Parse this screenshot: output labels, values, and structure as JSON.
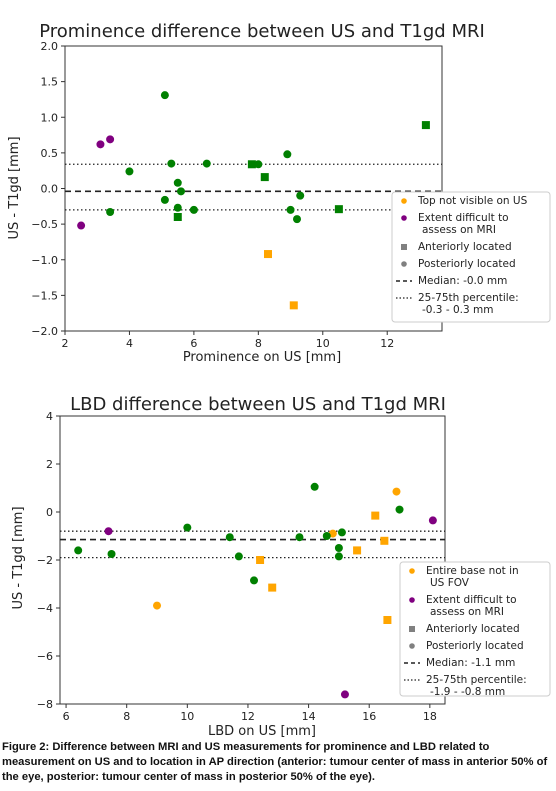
{
  "colors": {
    "orange": "#FFA500",
    "purple": "#800080",
    "green": "#008000",
    "gray": "#808080",
    "axis": "#333333"
  },
  "chart_data": [
    {
      "type": "scatter",
      "title": "Prominence difference between US and T1gd MRI",
      "xlabel": "Prominence on US [mm]",
      "ylabel": "US - T1gd [mm]",
      "xlim": [
        2,
        13.7
      ],
      "ylim": [
        -2.0,
        2.0
      ],
      "xticks": [
        "2",
        "4",
        "6",
        "8",
        "10",
        "12"
      ],
      "yticks": [
        "−2.0",
        "−1.5",
        "−1.0",
        "−0.5",
        "0.0",
        "0.5",
        "1.0",
        "1.5",
        "2.0"
      ],
      "grid": false,
      "legend_position": "right",
      "legend": [
        {
          "label": "Top not visible on US",
          "marker": "circle",
          "color": "#FFA500"
        },
        {
          "label": "Extent difficult to",
          "label2": "assess on MRI",
          "marker": "circle",
          "color": "#800080"
        },
        {
          "label": "Anteriorly located",
          "marker": "square",
          "color": "#808080"
        },
        {
          "label": "Posteriorly located",
          "marker": "circle",
          "color": "#808080"
        },
        {
          "label": "Median: -0.0 mm",
          "marker": "dashed"
        },
        {
          "label": "25-75th percentile:",
          "label2": "-0.3 - 0.3 mm",
          "marker": "dotted"
        }
      ],
      "median": -0.04,
      "percentile_25": -0.3,
      "percentile_75": 0.34,
      "series": [
        {
          "name": "Top not visible on US",
          "color": "#FFA500",
          "points": [
            {
              "x": 8.3,
              "y": -0.92,
              "m": "square"
            },
            {
              "x": 9.1,
              "y": -1.64,
              "m": "square"
            }
          ]
        },
        {
          "name": "Extent difficult to assess on MRI",
          "color": "#800080",
          "points": [
            {
              "x": 2.5,
              "y": -0.52,
              "m": "circle"
            },
            {
              "x": 3.1,
              "y": 0.62,
              "m": "circle"
            },
            {
              "x": 3.4,
              "y": 0.69,
              "m": "circle"
            }
          ]
        },
        {
          "name": "Green",
          "color": "#008000",
          "points": [
            {
              "x": 3.4,
              "y": -0.33,
              "m": "circle"
            },
            {
              "x": 4.0,
              "y": 0.24,
              "m": "circle"
            },
            {
              "x": 5.1,
              "y": 1.31,
              "m": "circle"
            },
            {
              "x": 5.1,
              "y": -0.16,
              "m": "circle"
            },
            {
              "x": 5.3,
              "y": 0.35,
              "m": "circle"
            },
            {
              "x": 5.5,
              "y": 0.08,
              "m": "circle"
            },
            {
              "x": 5.6,
              "y": -0.04,
              "m": "circle"
            },
            {
              "x": 5.5,
              "y": -0.27,
              "m": "circle"
            },
            {
              "x": 5.5,
              "y": -0.4,
              "m": "square"
            },
            {
              "x": 6.0,
              "y": -0.3,
              "m": "circle"
            },
            {
              "x": 6.4,
              "y": 0.35,
              "m": "circle"
            },
            {
              "x": 7.8,
              "y": 0.34,
              "m": "square"
            },
            {
              "x": 8.0,
              "y": 0.34,
              "m": "circle"
            },
            {
              "x": 8.2,
              "y": 0.16,
              "m": "square"
            },
            {
              "x": 8.9,
              "y": 0.48,
              "m": "circle"
            },
            {
              "x": 9.0,
              "y": -0.3,
              "m": "circle"
            },
            {
              "x": 9.2,
              "y": -0.43,
              "m": "circle"
            },
            {
              "x": 9.3,
              "y": -0.1,
              "m": "circle"
            },
            {
              "x": 10.5,
              "y": -0.29,
              "m": "square"
            },
            {
              "x": 13.2,
              "y": 0.89,
              "m": "square"
            }
          ]
        }
      ]
    },
    {
      "type": "scatter",
      "title": "LBD difference between US and T1gd MRI",
      "xlabel": "LBD on US [mm]",
      "ylabel": "US - T1gd [mm]",
      "xlim": [
        5.8,
        18.5
      ],
      "ylim": [
        -8,
        4
      ],
      "xticks": [
        "6",
        "8",
        "10",
        "12",
        "14",
        "16",
        "18"
      ],
      "yticks": [
        "−8",
        "−6",
        "−4",
        "−2",
        "0",
        "2",
        "4"
      ],
      "grid": false,
      "legend_position": "bottom-right",
      "legend": [
        {
          "label": "Entire base not in",
          "label2": "US FOV",
          "marker": "circle",
          "color": "#FFA500"
        },
        {
          "label": "Extent difficult to",
          "label2": "assess on MRI",
          "marker": "circle",
          "color": "#800080"
        },
        {
          "label": "Anteriorly located",
          "marker": "square",
          "color": "#808080"
        },
        {
          "label": "Posteriorly located",
          "marker": "circle",
          "color": "#808080"
        },
        {
          "label": "Median: -1.1 mm",
          "marker": "dashed"
        },
        {
          "label": "25-75th percentile:",
          "label2": "-1.9 - -0.8 mm",
          "marker": "dotted"
        }
      ],
      "median": -1.15,
      "percentile_25": -1.9,
      "percentile_75": -0.8,
      "series": [
        {
          "name": "Entire base not in US FOV",
          "color": "#FFA500",
          "points": [
            {
              "x": 9.0,
              "y": -3.9,
              "m": "circle"
            },
            {
              "x": 12.4,
              "y": -2.0,
              "m": "square"
            },
            {
              "x": 12.8,
              "y": -3.15,
              "m": "square"
            },
            {
              "x": 14.8,
              "y": -0.9,
              "m": "circle"
            },
            {
              "x": 15.6,
              "y": -1.6,
              "m": "square"
            },
            {
              "x": 16.2,
              "y": -0.15,
              "m": "square"
            },
            {
              "x": 16.5,
              "y": -1.2,
              "m": "square"
            },
            {
              "x": 16.6,
              "y": -4.5,
              "m": "square"
            },
            {
              "x": 16.9,
              "y": 0.85,
              "m": "circle"
            }
          ]
        },
        {
          "name": "Extent difficult to assess on MRI",
          "color": "#800080",
          "points": [
            {
              "x": 7.4,
              "y": -0.8,
              "m": "circle"
            },
            {
              "x": 15.2,
              "y": -7.6,
              "m": "circle"
            },
            {
              "x": 18.1,
              "y": -0.35,
              "m": "circle"
            }
          ]
        },
        {
          "name": "Green",
          "color": "#008000",
          "points": [
            {
              "x": 6.4,
              "y": -1.6,
              "m": "circle"
            },
            {
              "x": 7.5,
              "y": -1.75,
              "m": "circle"
            },
            {
              "x": 10.0,
              "y": -0.65,
              "m": "circle"
            },
            {
              "x": 11.4,
              "y": -1.05,
              "m": "circle"
            },
            {
              "x": 11.7,
              "y": -1.85,
              "m": "circle"
            },
            {
              "x": 12.2,
              "y": -2.85,
              "m": "circle"
            },
            {
              "x": 13.7,
              "y": -1.05,
              "m": "circle"
            },
            {
              "x": 14.2,
              "y": 1.05,
              "m": "circle"
            },
            {
              "x": 14.6,
              "y": -1.0,
              "m": "circle"
            },
            {
              "x": 15.0,
              "y": -1.5,
              "m": "circle"
            },
            {
              "x": 15.0,
              "y": -1.85,
              "m": "circle"
            },
            {
              "x": 15.1,
              "y": -0.85,
              "m": "circle"
            },
            {
              "x": 17.0,
              "y": 0.1,
              "m": "circle"
            }
          ]
        }
      ]
    }
  ],
  "caption": "Figure 2: Difference between MRI and US measurements for prominence and LBD related to measurement on US and to location in AP direction (anterior: tumour center of mass in anterior 50% of the eye, posterior: tumour center of mass in posterior 50% of the eye)."
}
